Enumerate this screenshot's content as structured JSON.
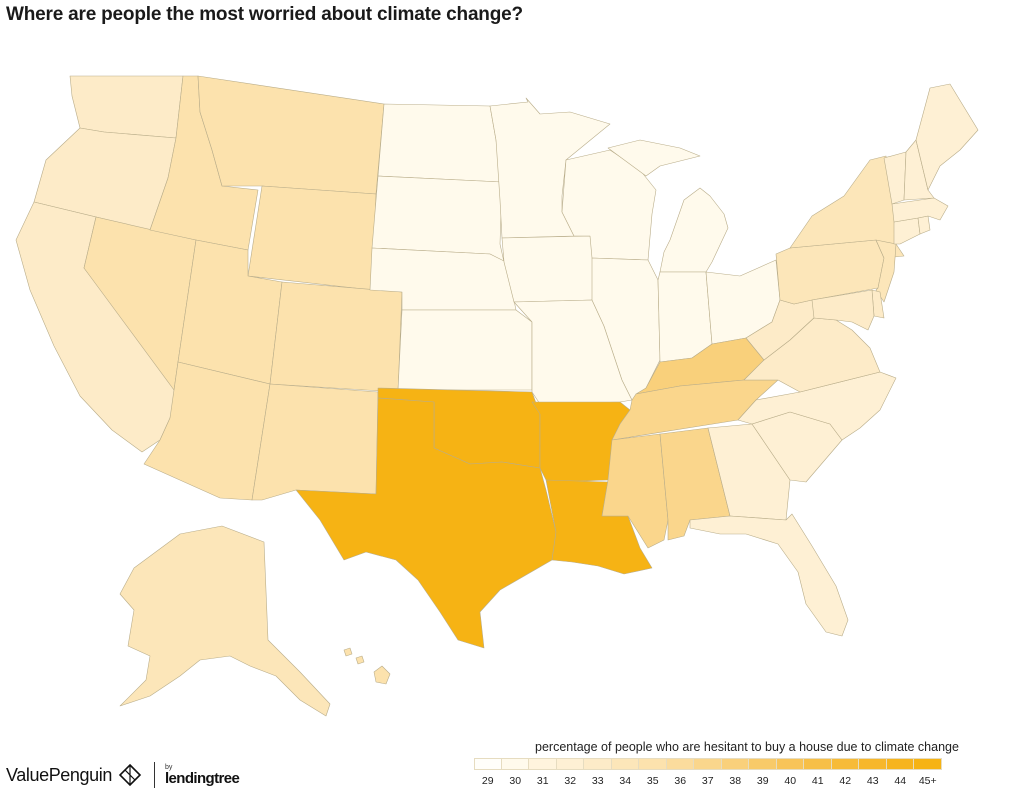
{
  "title": "Where are people the most worried about climate change?",
  "legend": {
    "title": "percentage of people who are hesitant to buy a house due to climate change",
    "bins": [
      {
        "label": "29",
        "color": "#fffefa"
      },
      {
        "label": "30",
        "color": "#fffaec"
      },
      {
        "label": "31",
        "color": "#fff4dd"
      },
      {
        "label": "32",
        "color": "#fef0d4"
      },
      {
        "label": "33",
        "color": "#fdebc8"
      },
      {
        "label": "34",
        "color": "#fce6b9"
      },
      {
        "label": "35",
        "color": "#fce2ad"
      },
      {
        "label": "36",
        "color": "#fbdc9d"
      },
      {
        "label": "37",
        "color": "#fad68c"
      },
      {
        "label": "38",
        "color": "#f9d07b"
      },
      {
        "label": "39",
        "color": "#f8ca69"
      },
      {
        "label": "40",
        "color": "#f8c458"
      },
      {
        "label": "41",
        "color": "#f7bf47"
      },
      {
        "label": "42",
        "color": "#f7bb38"
      },
      {
        "label": "43",
        "color": "#f7b72b"
      },
      {
        "label": "44",
        "color": "#f6b41e"
      },
      {
        "label": "45+",
        "color": "#f6b314"
      }
    ]
  },
  "brand": {
    "name": "ValuePenguin",
    "partner_prefix": "by",
    "partner_name": "lendingtree"
  },
  "map": {
    "states": [
      {
        "id": "WA",
        "name": "Washington",
        "value": 33
      },
      {
        "id": "OR",
        "name": "Oregon",
        "value": 33
      },
      {
        "id": "CA",
        "name": "California",
        "value": 33
      },
      {
        "id": "NV",
        "name": "Nevada",
        "value": 35
      },
      {
        "id": "ID",
        "name": "Idaho",
        "value": 35
      },
      {
        "id": "MT",
        "name": "Montana",
        "value": 35
      },
      {
        "id": "WY",
        "name": "Wyoming",
        "value": 35
      },
      {
        "id": "UT",
        "name": "Utah",
        "value": 35
      },
      {
        "id": "AZ",
        "name": "Arizona",
        "value": 35
      },
      {
        "id": "CO",
        "name": "Colorado",
        "value": 35
      },
      {
        "id": "NM",
        "name": "New Mexico",
        "value": 35
      },
      {
        "id": "ND",
        "name": "North Dakota",
        "value": 30
      },
      {
        "id": "SD",
        "name": "South Dakota",
        "value": 30
      },
      {
        "id": "NE",
        "name": "Nebraska",
        "value": 30
      },
      {
        "id": "KS",
        "name": "Kansas",
        "value": 30
      },
      {
        "id": "OK",
        "name": "Oklahoma",
        "value": 45
      },
      {
        "id": "TX",
        "name": "Texas",
        "value": 45
      },
      {
        "id": "MN",
        "name": "Minnesota",
        "value": 30
      },
      {
        "id": "IA",
        "name": "Iowa",
        "value": 30
      },
      {
        "id": "MO",
        "name": "Missouri",
        "value": 30
      },
      {
        "id": "AR",
        "name": "Arkansas",
        "value": 45
      },
      {
        "id": "LA",
        "name": "Louisiana",
        "value": 45
      },
      {
        "id": "WI",
        "name": "Wisconsin",
        "value": 30
      },
      {
        "id": "IL",
        "name": "Illinois",
        "value": 30
      },
      {
        "id": "MI",
        "name": "Michigan",
        "value": 30
      },
      {
        "id": "IN",
        "name": "Indiana",
        "value": 30
      },
      {
        "id": "OH",
        "name": "Ohio",
        "value": 30
      },
      {
        "id": "KY",
        "name": "Kentucky",
        "value": 38
      },
      {
        "id": "TN",
        "name": "Tennessee",
        "value": 37
      },
      {
        "id": "MS",
        "name": "Mississippi",
        "value": 37
      },
      {
        "id": "AL",
        "name": "Alabama",
        "value": 37
      },
      {
        "id": "GA",
        "name": "Georgia",
        "value": 32
      },
      {
        "id": "FL",
        "name": "Florida",
        "value": 32
      },
      {
        "id": "SC",
        "name": "South Carolina",
        "value": 32
      },
      {
        "id": "NC",
        "name": "North Carolina",
        "value": 32
      },
      {
        "id": "VA",
        "name": "Virginia",
        "value": 33
      },
      {
        "id": "WV",
        "name": "West Virginia",
        "value": 33
      },
      {
        "id": "PA",
        "name": "Pennsylvania",
        "value": 34
      },
      {
        "id": "NY",
        "name": "New York",
        "value": 34
      },
      {
        "id": "NJ",
        "name": "New Jersey",
        "value": 34
      },
      {
        "id": "DE",
        "name": "Delaware",
        "value": 33
      },
      {
        "id": "MD",
        "name": "Maryland",
        "value": 33
      },
      {
        "id": "CT",
        "name": "Connecticut",
        "value": 32
      },
      {
        "id": "RI",
        "name": "Rhode Island",
        "value": 32
      },
      {
        "id": "MA",
        "name": "Massachusetts",
        "value": 32
      },
      {
        "id": "VT",
        "name": "Vermont",
        "value": 32
      },
      {
        "id": "NH",
        "name": "New Hampshire",
        "value": 32
      },
      {
        "id": "ME",
        "name": "Maine",
        "value": 32
      },
      {
        "id": "AK",
        "name": "Alaska",
        "value": 34
      },
      {
        "id": "HI",
        "name": "Hawaii",
        "value": 35
      }
    ]
  }
}
